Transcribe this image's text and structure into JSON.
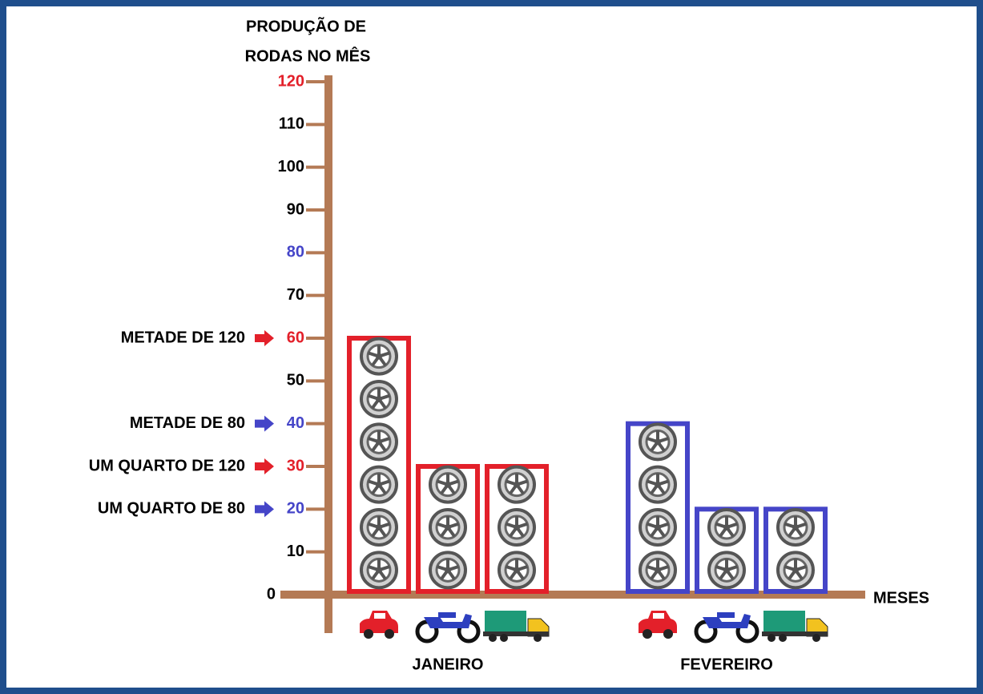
{
  "chart_data": {
    "type": "bar",
    "ylabel": [
      "PRODUÇÃO  DE",
      "RODAS NO MÊS"
    ],
    "xlabel": "MESES",
    "categories": [
      "JANEIRO",
      "FEVEREIRO"
    ],
    "category_colors": [
      "#e3202a",
      "#4545c8"
    ],
    "series": [
      {
        "values": [
          60,
          40
        ]
      },
      {
        "values": [
          30,
          20
        ]
      },
      {
        "values": [
          30,
          20
        ]
      }
    ],
    "ylim": [
      0,
      120
    ],
    "yticks": [
      0,
      10,
      20,
      30,
      40,
      50,
      60,
      70,
      80,
      90,
      100,
      110,
      120
    ],
    "ytick_colors": [
      "#000000",
      "#000000",
      "#4545c8",
      "#e3202a",
      "#4545c8",
      "#000000",
      "#e3202a",
      "#000000",
      "#4545c8",
      "#000000",
      "#000000",
      "#000000",
      "#e3202a"
    ],
    "annotations": [
      {
        "text": "METADE DE 120",
        "value": 60,
        "color": "#e3202a"
      },
      {
        "text": "METADE DE 80",
        "value": 40,
        "color": "#4545c8"
      },
      {
        "text": "UM QUARTO DE 120",
        "value": 30,
        "color": "#e3202a"
      },
      {
        "text": "UM QUARTO DE 80",
        "value": 20,
        "color": "#4545c8"
      }
    ],
    "axis_color": "#b47a55"
  }
}
